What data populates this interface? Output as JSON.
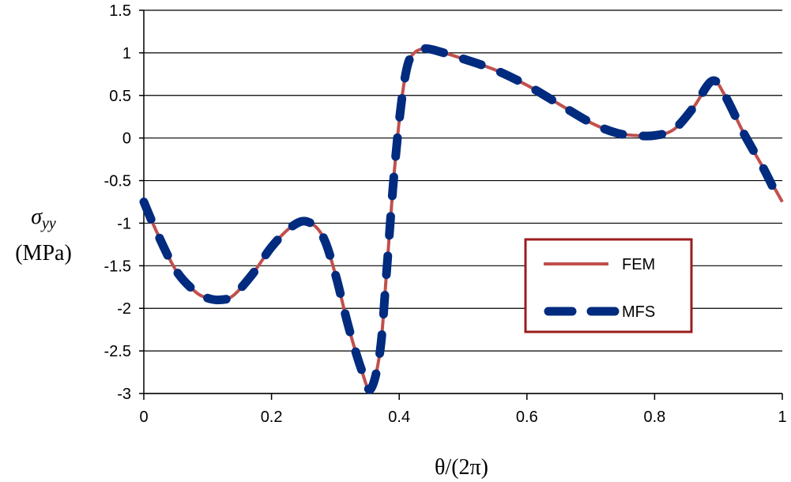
{
  "chart_data": {
    "type": "line",
    "xlabel": "θ/(2π)",
    "ylabel_symbol": "σ",
    "ylabel_subscript": "yy",
    "ylabel_unit": "(MPa)",
    "xlim": [
      0,
      1
    ],
    "ylim": [
      -3,
      1.5
    ],
    "x_ticks": [
      0,
      0.2,
      0.4,
      0.6,
      0.8,
      1
    ],
    "x_tick_labels": [
      "0",
      "0.2",
      "0.4",
      "0.6",
      "0.8",
      "1"
    ],
    "y_ticks": [
      1.5,
      1,
      0.5,
      0,
      -0.5,
      -1,
      -1.5,
      -2,
      -2.5,
      -3
    ],
    "y_tick_labels": [
      "1.5",
      "1",
      "0.5",
      "0",
      "-0.5",
      "-1",
      "-1.5",
      "-2",
      "-2.5",
      "-3"
    ],
    "grid": "horizontal",
    "legend": {
      "placement": "center-right",
      "border_color": "#9b1c1c"
    },
    "series": [
      {
        "name": "FEM",
        "color": "#c0504d",
        "style": "solid",
        "x": [
          0,
          0.02,
          0.05,
          0.08,
          0.1,
          0.12,
          0.14,
          0.17,
          0.2,
          0.23,
          0.255,
          0.28,
          0.3,
          0.32,
          0.34,
          0.355,
          0.37,
          0.38,
          0.39,
          0.4,
          0.41,
          0.42,
          0.44,
          0.47,
          0.5,
          0.55,
          0.6,
          0.65,
          0.7,
          0.74,
          0.77,
          0.8,
          0.83,
          0.86,
          0.89,
          0.91,
          0.94,
          0.97,
          1.0
        ],
        "y": [
          -0.75,
          -1.1,
          -1.55,
          -1.8,
          -1.88,
          -1.9,
          -1.85,
          -1.6,
          -1.28,
          -1.05,
          -0.98,
          -1.15,
          -1.6,
          -2.2,
          -2.7,
          -2.95,
          -2.5,
          -1.6,
          -0.6,
          0.2,
          0.75,
          0.97,
          1.05,
          1.0,
          0.93,
          0.8,
          0.62,
          0.4,
          0.18,
          0.06,
          0.03,
          0.03,
          0.1,
          0.35,
          0.67,
          0.5,
          0.05,
          -0.35,
          -0.75
        ]
      },
      {
        "name": "MFS",
        "color": "#002b7f",
        "style": "dashed",
        "x": [
          0,
          0.02,
          0.05,
          0.08,
          0.1,
          0.12,
          0.14,
          0.17,
          0.2,
          0.23,
          0.255,
          0.28,
          0.3,
          0.32,
          0.34,
          0.355,
          0.37,
          0.38,
          0.39,
          0.4,
          0.41,
          0.42,
          0.44,
          0.47,
          0.5,
          0.55,
          0.6,
          0.65,
          0.7,
          0.74,
          0.77,
          0.8,
          0.83,
          0.86,
          0.89,
          0.91,
          0.94,
          0.97,
          0.99
        ],
        "y": [
          -0.75,
          -1.1,
          -1.55,
          -1.8,
          -1.88,
          -1.9,
          -1.85,
          -1.6,
          -1.28,
          -1.05,
          -0.98,
          -1.15,
          -1.6,
          -2.2,
          -2.7,
          -2.95,
          -2.5,
          -1.6,
          -0.6,
          0.2,
          0.75,
          0.97,
          1.05,
          1.0,
          0.93,
          0.8,
          0.62,
          0.4,
          0.18,
          0.06,
          0.03,
          0.03,
          0.1,
          0.35,
          0.67,
          0.5,
          0.05,
          -0.35,
          -0.65
        ]
      }
    ]
  }
}
